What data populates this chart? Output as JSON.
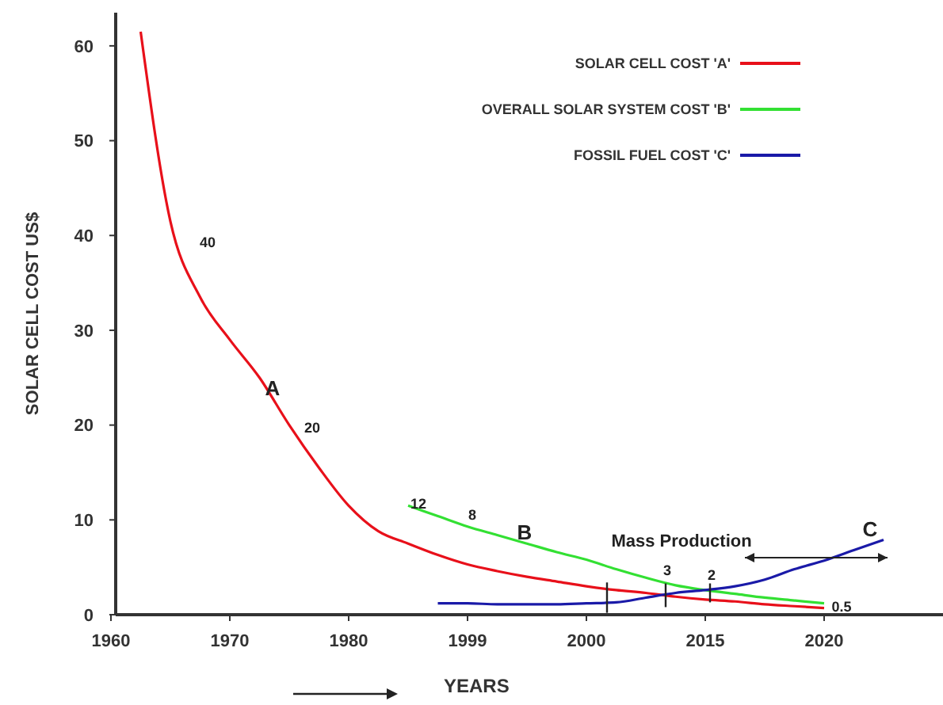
{
  "chart_data": {
    "type": "line",
    "xlabel": "YEARS",
    "ylabel": "SOLAR CELL COST US$",
    "categories": [
      "1960",
      null,
      null,
      null,
      "1970",
      null,
      null,
      null,
      "1980",
      null,
      null,
      null,
      "1999",
      null,
      null,
      null,
      "2000",
      null,
      null,
      null,
      "2015",
      null,
      null,
      null,
      "2020",
      null,
      null,
      null
    ],
    "ylim": [
      0,
      63.5
    ],
    "yticks": [
      0,
      10,
      20,
      30,
      40,
      50,
      60
    ],
    "legend": "top right",
    "grid": false,
    "marker": "none",
    "line_style": "solid",
    "series": [
      {
        "name": "SOLAR CELL COST 'A'",
        "color": "#e8101a",
        "values": [
          null,
          61.5,
          41.5,
          33.5,
          29,
          25,
          20,
          15.5,
          11.5,
          8.8,
          7.5,
          6.3,
          5.3,
          4.6,
          4.0,
          3.5,
          3.0,
          2.6,
          2.3,
          1.9,
          1.6,
          1.4,
          1.1,
          0.9,
          0.7,
          null,
          null,
          null
        ]
      },
      {
        "name": "OVERALL SOLAR SYSTEM COST 'B'",
        "color": "#33e033",
        "values": [
          null,
          null,
          null,
          null,
          null,
          null,
          null,
          null,
          null,
          null,
          11.5,
          10.4,
          9.3,
          8.4,
          7.5,
          6.6,
          5.8,
          4.8,
          3.9,
          3.1,
          2.6,
          2.2,
          1.8,
          1.5,
          1.2,
          null,
          null,
          null
        ]
      },
      {
        "name": "FOSSIL FUEL COST 'C'",
        "color": "#1a1aa8",
        "values": [
          null,
          null,
          null,
          null,
          null,
          null,
          null,
          null,
          null,
          null,
          null,
          1.2,
          1.2,
          1.1,
          1.1,
          1.1,
          1.2,
          1.3,
          1.8,
          2.3,
          2.6,
          3.0,
          3.7,
          4.8,
          5.7,
          6.8,
          7.9,
          null
        ]
      }
    ],
    "annotations": [
      "40",
      "A",
      "20",
      "12",
      "8",
      "B",
      "Mass Production",
      "C",
      "3",
      "2",
      "0.5"
    ]
  }
}
